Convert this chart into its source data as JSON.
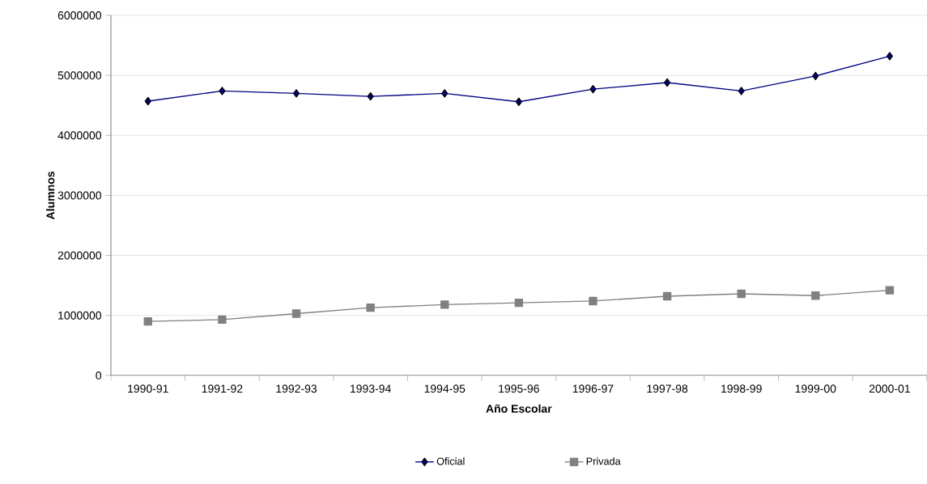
{
  "chart_data": {
    "type": "line",
    "xlabel": "Año Escolar",
    "ylabel": "Alumnos",
    "categories": [
      "1990-91",
      "1991-92",
      "1992-93",
      "1993-94",
      "1994-95",
      "1995-96",
      "1996-97",
      "1997-98",
      "1998-99",
      "1999-00",
      "2000-01"
    ],
    "series": [
      {
        "name": "Oficial",
        "color": "#000080",
        "marker": "diamond",
        "values": [
          4570000,
          4740000,
          4700000,
          4650000,
          4700000,
          4560000,
          4770000,
          4880000,
          4740000,
          4990000,
          5320000
        ]
      },
      {
        "name": "Privada",
        "color": "#808080",
        "marker": "square",
        "values": [
          900000,
          930000,
          1030000,
          1130000,
          1180000,
          1210000,
          1240000,
          1320000,
          1360000,
          1330000,
          1420000
        ]
      }
    ],
    "ylim": [
      0,
      6000000
    ],
    "yticks": [
      0,
      1000000,
      2000000,
      3000000,
      4000000,
      5000000,
      6000000
    ],
    "grid": "y",
    "legend": "bottom",
    "line_style": "solid"
  }
}
